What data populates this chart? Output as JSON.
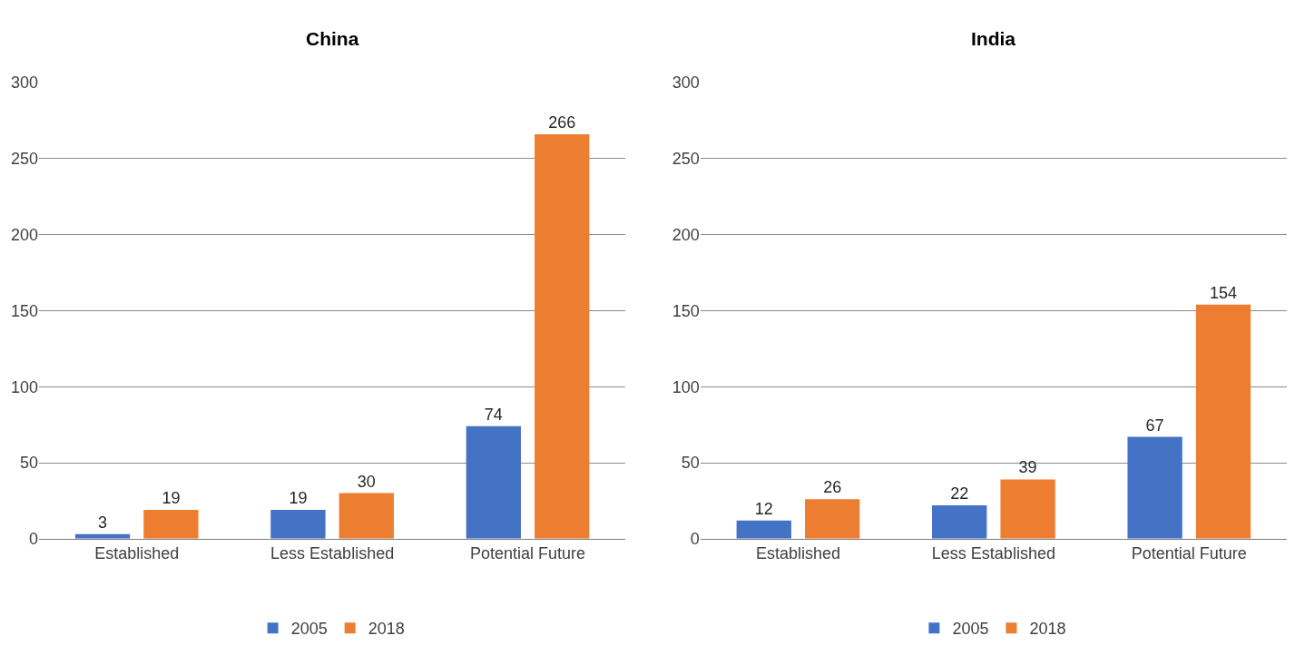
{
  "chart_data": [
    {
      "type": "bar",
      "title": "China",
      "categories": [
        "Established",
        "Less Established",
        "Potential Future"
      ],
      "series": [
        {
          "name": "2005",
          "color": "#4472c4",
          "values": [
            3,
            19,
            74
          ]
        },
        {
          "name": "2018",
          "color": "#ed7d31",
          "values": [
            19,
            30,
            266
          ]
        }
      ],
      "ylim": [
        0,
        300
      ],
      "yticks": [
        0,
        50,
        100,
        150,
        200,
        250,
        300
      ],
      "grid": "y",
      "legend": "bottom",
      "data_labels": true
    },
    {
      "type": "bar",
      "title": "India",
      "categories": [
        "Established",
        "Less Established",
        "Potential Future"
      ],
      "series": [
        {
          "name": "2005",
          "color": "#4472c4",
          "values": [
            12,
            22,
            67
          ]
        },
        {
          "name": "2018",
          "color": "#ed7d31",
          "values": [
            26,
            39,
            154
          ]
        }
      ],
      "ylim": [
        0,
        300
      ],
      "yticks": [
        0,
        50,
        100,
        150,
        200,
        250,
        300
      ],
      "grid": "y",
      "legend": "bottom",
      "data_labels": true
    }
  ]
}
